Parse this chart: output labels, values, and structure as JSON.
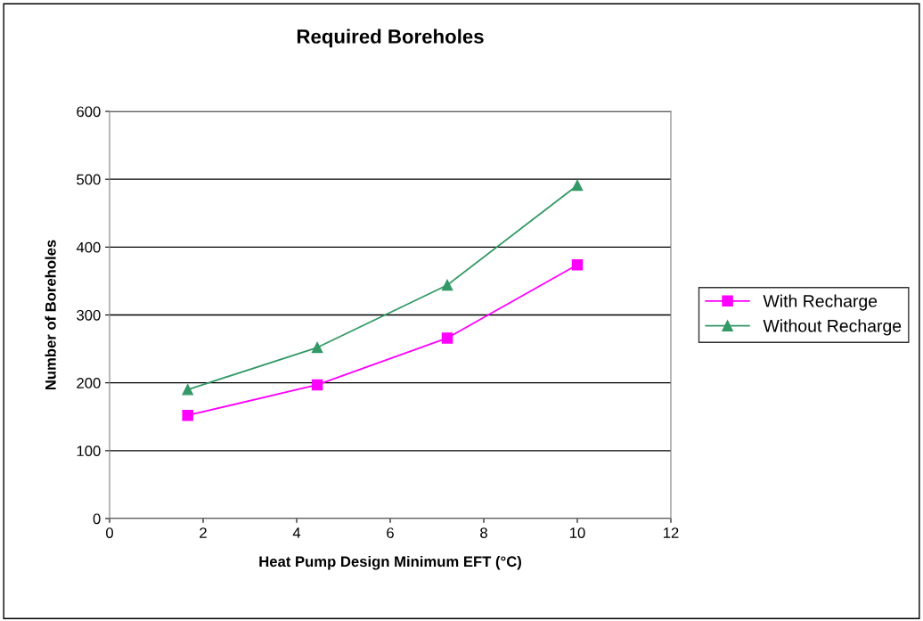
{
  "chart_data": {
    "type": "line",
    "title": "Required Boreholes",
    "xlabel": "Heat Pump Design Minimum EFT (°C)",
    "ylabel": "Number of Boreholes",
    "x": [
      1.67,
      4.44,
      7.22,
      10
    ],
    "series": [
      {
        "name": "With Recharge",
        "color": "#ff00ff",
        "marker": "square",
        "values": [
          152,
          197,
          266,
          374
        ]
      },
      {
        "name": "Without Recharge",
        "color": "#339966",
        "marker": "triangle",
        "values": [
          190,
          252,
          344,
          491
        ]
      }
    ],
    "xlim": [
      0,
      12
    ],
    "xticks": [
      0,
      2,
      4,
      6,
      8,
      10,
      12
    ],
    "ylim": [
      0,
      600
    ],
    "yticks": [
      0,
      100,
      200,
      300,
      400,
      500,
      600
    ],
    "grid": "y",
    "legend": "right"
  }
}
